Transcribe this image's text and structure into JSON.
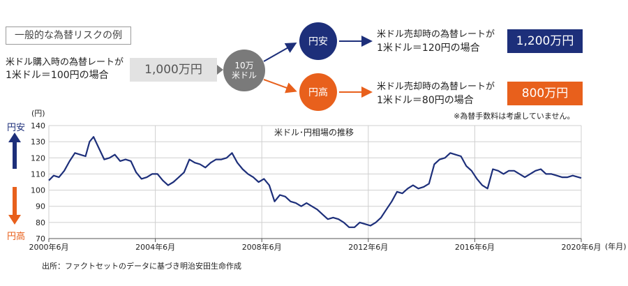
{
  "diagram": {
    "section_label": "一般的な為替リスクの例",
    "buy_line1": "米ドル購入時の為替レートが",
    "buy_line2": "1米ドル＝100円の場合",
    "amount": "1,000万円",
    "center_line1": "10万",
    "center_line2": "米ドル",
    "strong_label": "円安",
    "weak_label": "円高",
    "sell_strong_line1": "米ドル売却時の為替レートが",
    "sell_strong_line2": "1米ドル＝120円の場合",
    "sell_weak_line1": "米ドル売却時の為替レートが",
    "sell_weak_line2": "1米ドル＝80円の場合",
    "result_strong": "1,200万円",
    "result_weak": "800万円",
    "note": "※為替手数料は考慮していません。",
    "colors": {
      "navy": "#1d2f7a",
      "orange": "#e8601c",
      "gray": "#7a7a7a"
    }
  },
  "side_labels": {
    "up": "円安",
    "down": "円高"
  },
  "source": "出所：ファクトセットのデータに基づき明治安田生命作成",
  "chart_data": {
    "type": "line",
    "title": "米ドル･円相場の推移",
    "ylabel": "(円)",
    "xlabel": "(年月)",
    "ylim": [
      70,
      140
    ],
    "yticks": [
      70,
      80,
      90,
      100,
      110,
      120,
      130,
      140
    ],
    "xlim": [
      2000.42,
      2020.42
    ],
    "xticks": [
      {
        "x": 2000.42,
        "label": "2000年6月"
      },
      {
        "x": 2004.42,
        "label": "2004年6月"
      },
      {
        "x": 2008.42,
        "label": "2008年6月"
      },
      {
        "x": 2012.42,
        "label": "2012年6月"
      },
      {
        "x": 2016.42,
        "label": "2016年6月"
      },
      {
        "x": 2020.42,
        "label": "2020年6月"
      }
    ],
    "grid": true,
    "series_color": "#1d2f7a",
    "x": [
      2000.42,
      2000.6,
      2000.8,
      2001.0,
      2001.2,
      2001.4,
      2001.6,
      2001.8,
      2001.95,
      2002.1,
      2002.3,
      2002.5,
      2002.7,
      2002.9,
      2003.1,
      2003.3,
      2003.5,
      2003.7,
      2003.9,
      2004.1,
      2004.3,
      2004.5,
      2004.7,
      2004.9,
      2005.1,
      2005.3,
      2005.5,
      2005.7,
      2005.9,
      2006.1,
      2006.3,
      2006.5,
      2006.7,
      2006.9,
      2007.1,
      2007.3,
      2007.5,
      2007.7,
      2007.9,
      2008.1,
      2008.3,
      2008.5,
      2008.7,
      2008.9,
      2009.1,
      2009.3,
      2009.5,
      2009.7,
      2009.9,
      2010.1,
      2010.3,
      2010.5,
      2010.7,
      2010.9,
      2011.1,
      2011.3,
      2011.5,
      2011.7,
      2011.9,
      2012.1,
      2012.3,
      2012.5,
      2012.7,
      2012.9,
      2013.1,
      2013.3,
      2013.5,
      2013.7,
      2013.9,
      2014.1,
      2014.3,
      2014.5,
      2014.7,
      2014.9,
      2015.1,
      2015.3,
      2015.5,
      2015.7,
      2015.9,
      2016.1,
      2016.3,
      2016.5,
      2016.7,
      2016.9,
      2017.1,
      2017.3,
      2017.5,
      2017.7,
      2017.9,
      2018.1,
      2018.3,
      2018.5,
      2018.7,
      2018.9,
      2019.1,
      2019.3,
      2019.5,
      2019.7,
      2019.9,
      2020.1,
      2020.42
    ],
    "values": [
      106,
      109,
      108,
      112,
      118,
      123,
      122,
      121,
      130,
      133,
      126,
      119,
      120,
      122,
      118,
      119,
      118,
      111,
      107,
      108,
      110,
      110,
      106,
      103,
      105,
      108,
      111,
      119,
      117,
      116,
      114,
      117,
      119,
      119,
      120,
      123,
      117,
      113,
      110,
      108,
      105,
      107,
      103,
      93,
      97,
      96,
      93,
      92,
      90,
      92,
      90,
      88,
      85,
      82,
      83,
      82,
      80,
      77,
      77,
      80,
      79,
      78,
      80,
      83,
      88,
      93,
      99,
      98,
      101,
      103,
      101,
      102,
      104,
      116,
      119,
      120,
      123,
      122,
      121,
      115,
      112,
      107,
      103,
      101,
      113,
      112,
      110,
      112,
      112,
      110,
      108,
      110,
      112,
      113,
      110,
      110,
      109,
      108,
      108,
      109,
      107.5
    ]
  }
}
